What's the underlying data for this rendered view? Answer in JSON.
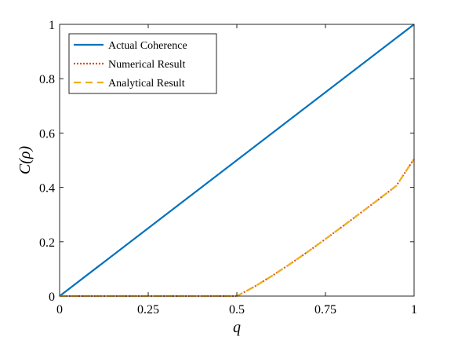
{
  "chart_data": {
    "type": "line",
    "xlabel": "q",
    "ylabel": "C(ρ)",
    "xlim": [
      0,
      1
    ],
    "ylim": [
      0,
      1
    ],
    "xticks": [
      0,
      0.25,
      0.5,
      0.75,
      1
    ],
    "xtick_labels": [
      "0",
      "0.25",
      "0.5",
      "0.75",
      "1"
    ],
    "yticks": [
      0,
      0.2,
      0.4,
      0.6,
      0.8,
      1
    ],
    "ytick_labels": [
      "0",
      "0.2",
      "0.4",
      "0.6",
      "0.8",
      "1"
    ],
    "grid": false,
    "legend_position": "top-left",
    "series": [
      {
        "name": "Actual Coherence",
        "color": "#0072BD",
        "style": "solid",
        "x": [
          0,
          1
        ],
        "y": [
          0,
          1
        ]
      },
      {
        "name": "Numerical Result",
        "color": "#D95319",
        "style": "dotted",
        "x": [
          0,
          0.5,
          0.55,
          0.6,
          0.65,
          0.7,
          0.75,
          0.8,
          0.85,
          0.9,
          0.95,
          1.0
        ],
        "y": [
          0,
          0,
          0.035,
          0.075,
          0.118,
          0.163,
          0.21,
          0.258,
          0.307,
          0.356,
          0.406,
          0.505
        ]
      },
      {
        "name": "Analytical Result",
        "color": "#EDB120",
        "style": "dashed",
        "x": [
          0,
          0.5,
          0.55,
          0.6,
          0.65,
          0.7,
          0.75,
          0.8,
          0.85,
          0.9,
          0.95,
          1.0
        ],
        "y": [
          0,
          0,
          0.035,
          0.075,
          0.118,
          0.163,
          0.21,
          0.258,
          0.307,
          0.356,
          0.406,
          0.505
        ]
      }
    ]
  }
}
